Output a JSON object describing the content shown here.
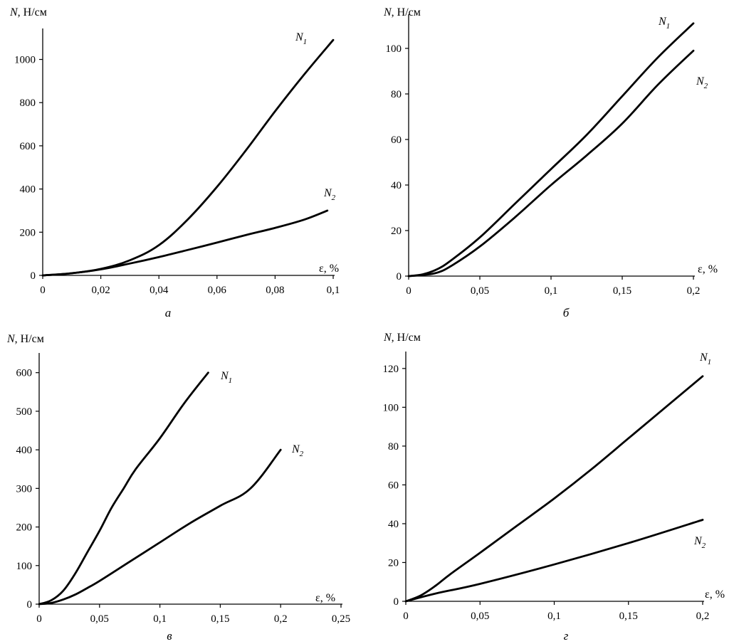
{
  "chart_data": [
    {
      "type": "line",
      "caption": "а",
      "ylabel": "N, Н/см",
      "xlabel": "ε, %",
      "xlim": [
        0,
        0.1
      ],
      "ylim": [
        0,
        1150
      ],
      "xticks": [
        0,
        0.02,
        0.04,
        0.06,
        0.08,
        0.1
      ],
      "xtick_labels": [
        "0",
        "0,02",
        "0,04",
        "0,06",
        "0,08",
        "0,1"
      ],
      "yticks": [
        0,
        200,
        400,
        600,
        800,
        1000
      ],
      "ytick_labels": [
        "0",
        "200",
        "400",
        "600",
        "800",
        "1000"
      ],
      "series": [
        {
          "name": "N1",
          "label_main": "N",
          "label_sub": "1",
          "x": [
            0,
            0.01,
            0.02,
            0.03,
            0.04,
            0.05,
            0.06,
            0.07,
            0.08,
            0.09,
            0.1
          ],
          "y": [
            0,
            10,
            30,
            70,
            140,
            260,
            410,
            580,
            760,
            930,
            1090
          ]
        },
        {
          "name": "N2",
          "label_main": "N",
          "label_sub": "2",
          "x": [
            0,
            0.01,
            0.02,
            0.03,
            0.04,
            0.05,
            0.06,
            0.07,
            0.08,
            0.09,
            0.098
          ],
          "y": [
            0,
            10,
            28,
            55,
            85,
            118,
            152,
            187,
            220,
            258,
            300
          ]
        }
      ]
    },
    {
      "type": "line",
      "caption": "б",
      "ylabel": "N, Н/см",
      "xlabel": "ε, %",
      "xlim": [
        0,
        0.2
      ],
      "ylim": [
        0,
        115
      ],
      "xticks": [
        0,
        0.05,
        0.1,
        0.15,
        0.2
      ],
      "xtick_labels": [
        "0",
        "0,05",
        "0,1",
        "0,15",
        "0,2"
      ],
      "yticks": [
        0,
        20,
        40,
        60,
        80,
        100
      ],
      "ytick_labels": [
        "0",
        "20",
        "40",
        "60",
        "80",
        "100"
      ],
      "series": [
        {
          "name": "N1",
          "label_main": "N",
          "label_sub": "1",
          "x": [
            0,
            0.01,
            0.02,
            0.03,
            0.05,
            0.075,
            0.1,
            0.125,
            0.15,
            0.175,
            0.2
          ],
          "y": [
            0,
            0.8,
            3,
            7,
            17,
            32,
            47,
            62,
            79,
            96,
            111
          ]
        },
        {
          "name": "N2",
          "label_main": "N",
          "label_sub": "2",
          "x": [
            0,
            0.01,
            0.02,
            0.03,
            0.05,
            0.075,
            0.1,
            0.125,
            0.15,
            0.175,
            0.2
          ],
          "y": [
            0,
            0.5,
            1.5,
            4.5,
            13,
            26,
            40,
            53,
            67,
            84,
            99
          ]
        }
      ]
    },
    {
      "type": "line",
      "caption": "в",
      "ylabel": "N, Н/см",
      "xlabel": "ε, %",
      "xlim": [
        0,
        0.25
      ],
      "ylim": [
        0,
        640
      ],
      "xticks": [
        0,
        0.05,
        0.1,
        0.15,
        0.2,
        0.25
      ],
      "xtick_labels": [
        "0",
        "0,05",
        "0,1",
        "0,15",
        "0,2",
        "0,25"
      ],
      "yticks": [
        0,
        100,
        200,
        300,
        400,
        500,
        600
      ],
      "ytick_labels": [
        "0",
        "100",
        "200",
        "300",
        "400",
        "500",
        "600"
      ],
      "series": [
        {
          "name": "N1",
          "label_main": "N",
          "label_sub": "1",
          "x": [
            0,
            0.01,
            0.02,
            0.03,
            0.04,
            0.05,
            0.06,
            0.07,
            0.08,
            0.1,
            0.12,
            0.14
          ],
          "y": [
            0,
            10,
            35,
            80,
            135,
            190,
            250,
            300,
            350,
            430,
            520,
            600
          ]
        },
        {
          "name": "N2",
          "label_main": "N",
          "label_sub": "2",
          "x": [
            0,
            0.01,
            0.02,
            0.03,
            0.04,
            0.05,
            0.075,
            0.1,
            0.125,
            0.15,
            0.175,
            0.2
          ],
          "y": [
            0,
            3,
            12,
            25,
            42,
            60,
            110,
            160,
            210,
            255,
            300,
            400
          ]
        }
      ]
    },
    {
      "type": "line",
      "caption": "г",
      "ylabel": "N, Н/см",
      "xlabel": "ε, %",
      "xlim": [
        0,
        0.2
      ],
      "ylim": [
        0,
        128
      ],
      "xticks": [
        0,
        0.05,
        0.1,
        0.15,
        0.2
      ],
      "xtick_labels": [
        "0",
        "0,05",
        "0,1",
        "0,15",
        "0,2"
      ],
      "yticks": [
        0,
        20,
        40,
        60,
        80,
        100,
        120
      ],
      "ytick_labels": [
        "0",
        "20",
        "40",
        "60",
        "80",
        "100",
        "120"
      ],
      "series": [
        {
          "name": "N1",
          "label_main": "N",
          "label_sub": "1",
          "x": [
            0,
            0.01,
            0.02,
            0.03,
            0.05,
            0.075,
            0.1,
            0.125,
            0.15,
            0.175,
            0.2
          ],
          "y": [
            0,
            3,
            8,
            14,
            25,
            39,
            53,
            68,
            84,
            100,
            116
          ]
        },
        {
          "name": "N2",
          "label_main": "N",
          "label_sub": "2",
          "x": [
            0,
            0.02,
            0.05,
            0.1,
            0.15,
            0.2
          ],
          "y": [
            0,
            4,
            9,
            19,
            30,
            42
          ]
        }
      ]
    }
  ]
}
